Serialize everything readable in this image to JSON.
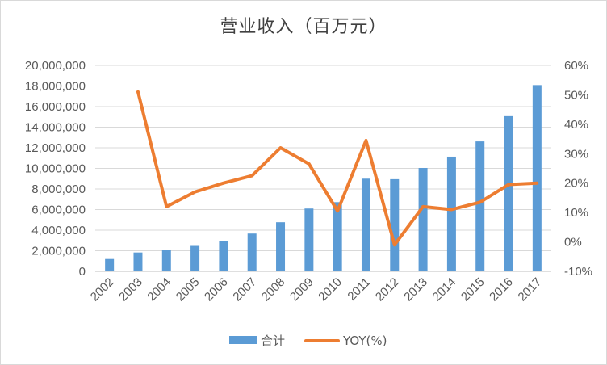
{
  "chart_data": {
    "type": "bar+line",
    "title": "营业收入（百万元）",
    "categories": [
      "2002",
      "2003",
      "2004",
      "2005",
      "2006",
      "2007",
      "2008",
      "2009",
      "2010",
      "2011",
      "2012",
      "2013",
      "2014",
      "2015",
      "2016",
      "2017"
    ],
    "series": [
      {
        "name": "合计",
        "type": "bar",
        "axis": "left",
        "color": "#5b9bd5",
        "values": [
          1200000,
          1830000,
          2050000,
          2470000,
          2950000,
          3670000,
          4770000,
          6100000,
          6720000,
          9000000,
          8950000,
          10040000,
          11140000,
          12620000,
          15070000,
          18090000
        ]
      },
      {
        "name": "YOY(%)",
        "type": "line",
        "axis": "right",
        "color": "#ed7d31",
        "values": [
          null,
          0.51,
          0.12,
          0.17,
          0.2,
          0.225,
          0.32,
          0.265,
          0.105,
          0.345,
          -0.01,
          0.12,
          0.11,
          0.135,
          0.195,
          0.2
        ]
      }
    ],
    "left_axis": {
      "ylim": [
        0,
        20000000
      ],
      "ticks": [
        0,
        2000000,
        4000000,
        6000000,
        8000000,
        10000000,
        12000000,
        14000000,
        16000000,
        18000000,
        20000000
      ],
      "tick_labels": [
        "0",
        "2,000,000",
        "4,000,000",
        "6,000,000",
        "8,000,000",
        "10,000,000",
        "12,000,000",
        "14,000,000",
        "16,000,000",
        "18,000,000",
        "20,000,000"
      ]
    },
    "right_axis": {
      "ylim": [
        -0.1,
        0.6
      ],
      "ticks": [
        -0.1,
        0.0,
        0.1,
        0.2,
        0.3,
        0.4,
        0.5,
        0.6
      ],
      "tick_labels": [
        "-10%",
        "0%",
        "10%",
        "20%",
        "30%",
        "40%",
        "50%",
        "60%"
      ]
    },
    "grid": true,
    "gridline_color": "#d9d9d9",
    "legend_position": "bottom"
  }
}
